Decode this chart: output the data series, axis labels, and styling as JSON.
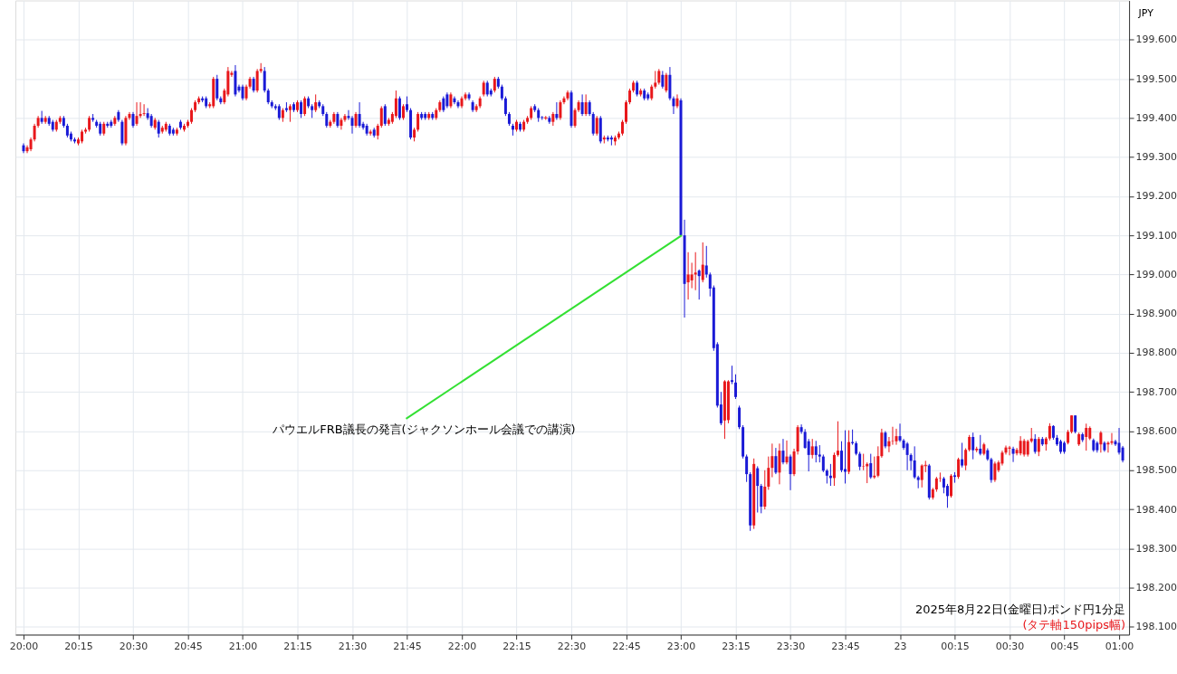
{
  "chart_data": {
    "type": "candlestick",
    "categories": [
      "20:00",
      null,
      null,
      null,
      null,
      null,
      null,
      null,
      null,
      null,
      null,
      null,
      null,
      null,
      null,
      "20:15",
      null,
      null,
      null,
      null,
      null,
      null,
      null,
      null,
      null,
      null,
      null,
      null,
      null,
      null,
      "20:30",
      null,
      null,
      null,
      null,
      null,
      null,
      null,
      null,
      null,
      null,
      null,
      null,
      null,
      null,
      "20:45",
      null,
      null,
      null,
      null,
      null,
      null,
      null,
      null,
      null,
      null,
      null,
      null,
      null,
      null,
      "21:00",
      null,
      null,
      null,
      null,
      null,
      null,
      null,
      null,
      null,
      null,
      null,
      null,
      null,
      null,
      "21:15",
      null,
      null,
      null,
      null,
      null,
      null,
      null,
      null,
      null,
      null,
      null,
      null,
      null,
      null,
      "21:30",
      null,
      null,
      null,
      null,
      null,
      null,
      null,
      null,
      null,
      null,
      null,
      null,
      null,
      null,
      "21:45",
      null,
      null,
      null,
      null,
      null,
      null,
      null,
      null,
      null,
      null,
      null,
      null,
      null,
      null,
      "22:00",
      null,
      null,
      null,
      null,
      null,
      null,
      null,
      null,
      null,
      null,
      null,
      null,
      null,
      null,
      "22:15",
      null,
      null,
      null,
      null,
      null,
      null,
      null,
      null,
      null,
      null,
      null,
      null,
      null,
      null,
      "22:30",
      null,
      null,
      null,
      null,
      null,
      null,
      null,
      null,
      null,
      null,
      null,
      null,
      null,
      null,
      "22:45",
      null,
      null,
      null,
      null,
      null,
      null,
      null,
      null,
      null,
      null,
      null,
      null,
      null,
      null,
      "23:00",
      null,
      null,
      null,
      null,
      null,
      null,
      null,
      null,
      null,
      null,
      null,
      null,
      null,
      null,
      "23:15",
      null,
      null,
      null,
      null,
      null,
      null,
      null,
      null,
      null,
      null,
      null,
      null,
      null,
      null,
      "23:30",
      null,
      null,
      null,
      null,
      null,
      null,
      null,
      null,
      null,
      null,
      null,
      null,
      null,
      null,
      "23:45",
      null,
      null,
      null,
      null,
      null,
      null,
      null,
      null,
      null,
      null,
      null,
      null,
      null,
      null,
      "23",
      null,
      null,
      null,
      null,
      null,
      null,
      null,
      null,
      null,
      null,
      null,
      null,
      null,
      null,
      "00:15",
      null,
      null,
      null,
      null,
      null,
      null,
      null,
      null,
      null,
      null,
      null,
      null,
      null,
      null,
      "00:30",
      null,
      null,
      null,
      null,
      null,
      null,
      null,
      null,
      null,
      null,
      null,
      null,
      null,
      null,
      "00:45",
      null,
      null,
      null,
      null,
      null,
      null,
      null,
      null,
      null,
      null,
      null,
      null,
      null,
      null,
      "01:00",
      null
    ],
    "ohlc": [
      [
        199.33,
        199.335,
        199.31,
        199.315
      ],
      [
        199.315,
        199.33,
        199.31,
        199.325
      ],
      [
        199.32,
        199.35,
        199.315,
        199.345
      ],
      [
        199.345,
        199.385,
        199.34,
        199.38
      ],
      [
        199.38,
        199.405,
        199.375,
        199.4
      ],
      [
        199.4,
        199.418,
        199.385,
        199.39
      ],
      [
        199.39,
        199.405,
        199.385,
        199.4
      ],
      [
        199.4,
        199.405,
        199.38,
        199.385
      ],
      [
        199.39,
        199.395,
        199.365,
        199.37
      ],
      [
        199.37,
        199.395,
        199.365,
        199.39
      ],
      [
        199.39,
        199.405,
        199.385,
        199.4
      ],
      [
        199.4,
        199.405,
        199.375,
        199.38
      ],
      [
        199.38,
        199.385,
        199.35,
        199.355
      ],
      [
        199.36,
        199.365,
        199.34,
        199.345
      ],
      [
        199.345,
        199.35,
        199.335,
        199.34
      ],
      [
        199.335,
        199.35,
        199.33,
        199.345
      ],
      [
        199.34,
        199.37,
        199.335,
        199.365
      ],
      [
        199.365,
        199.375,
        199.36,
        199.37
      ],
      [
        199.37,
        199.405,
        199.365,
        199.4
      ],
      [
        199.4,
        199.41,
        199.39,
        199.395
      ],
      [
        199.39,
        199.395,
        199.375,
        199.38
      ],
      [
        199.385,
        199.39,
        199.355,
        199.36
      ],
      [
        199.36,
        199.39,
        199.355,
        199.385
      ],
      [
        199.385,
        199.39,
        199.375,
        199.38
      ],
      [
        199.39,
        199.395,
        199.375,
        199.38
      ],
      [
        199.385,
        199.405,
        199.38,
        199.4
      ],
      [
        199.415,
        199.42,
        199.39,
        199.395
      ],
      [
        199.39,
        199.395,
        199.33,
        199.335
      ],
      [
        199.335,
        199.405,
        199.33,
        199.4
      ],
      [
        199.4,
        199.415,
        199.395,
        199.41
      ],
      [
        199.41,
        199.415,
        199.375,
        199.38
      ],
      [
        199.385,
        199.44,
        199.38,
        199.405
      ],
      [
        199.405,
        199.44,
        199.4,
        199.41
      ],
      [
        199.41,
        199.435,
        199.405,
        199.412
      ],
      [
        199.412,
        199.425,
        199.395,
        199.4
      ],
      [
        199.405,
        199.41,
        199.375,
        199.38
      ],
      [
        199.375,
        199.4,
        199.37,
        199.395
      ],
      [
        199.39,
        199.395,
        199.35,
        199.36
      ],
      [
        199.365,
        199.38,
        199.36,
        199.375
      ],
      [
        199.37,
        199.39,
        199.365,
        199.385
      ],
      [
        199.38,
        199.385,
        199.355,
        199.36
      ],
      [
        199.37,
        199.375,
        199.355,
        199.36
      ],
      [
        199.36,
        199.375,
        199.355,
        199.37
      ],
      [
        199.39,
        199.395,
        199.37,
        199.375
      ],
      [
        199.37,
        199.385,
        199.365,
        199.38
      ],
      [
        199.38,
        199.395,
        199.375,
        199.39
      ],
      [
        199.39,
        199.425,
        199.385,
        199.42
      ],
      [
        199.42,
        199.445,
        199.415,
        199.44
      ],
      [
        199.44,
        199.455,
        199.435,
        199.45
      ],
      [
        199.45,
        199.455,
        199.44,
        199.445
      ],
      [
        199.45,
        199.455,
        199.425,
        199.43
      ],
      [
        199.43,
        199.44,
        199.425,
        199.435
      ],
      [
        199.43,
        199.505,
        199.425,
        199.5
      ],
      [
        199.5,
        199.51,
        199.445,
        199.45
      ],
      [
        199.45,
        199.455,
        199.435,
        199.44
      ],
      [
        199.44,
        199.475,
        199.435,
        199.47
      ],
      [
        199.46,
        199.53,
        199.455,
        199.52
      ],
      [
        199.51,
        199.52,
        199.505,
        199.515
      ],
      [
        199.52,
        199.535,
        199.455,
        199.46
      ],
      [
        199.48,
        199.485,
        199.465,
        199.47
      ],
      [
        199.48,
        199.485,
        199.445,
        199.45
      ],
      [
        199.45,
        199.485,
        199.445,
        199.48
      ],
      [
        199.48,
        199.505,
        199.475,
        199.5
      ],
      [
        199.5,
        199.505,
        199.465,
        199.47
      ],
      [
        199.47,
        199.525,
        199.465,
        199.52
      ],
      [
        199.52,
        199.54,
        199.515,
        199.525
      ],
      [
        199.52,
        199.53,
        199.465,
        199.47
      ],
      [
        199.47,
        199.475,
        199.435,
        199.44
      ],
      [
        199.44,
        199.445,
        199.425,
        199.43
      ],
      [
        199.43,
        199.435,
        199.42,
        199.425
      ],
      [
        199.43,
        199.435,
        199.395,
        199.4
      ],
      [
        199.4,
        199.425,
        199.39,
        199.42
      ],
      [
        199.425,
        199.44,
        199.415,
        199.42
      ],
      [
        199.42,
        199.435,
        199.39,
        199.43
      ],
      [
        199.435,
        199.44,
        199.415,
        199.42
      ],
      [
        199.42,
        199.445,
        199.415,
        199.44
      ],
      [
        199.44,
        199.445,
        199.4,
        199.41
      ],
      [
        199.41,
        199.455,
        199.405,
        199.45
      ],
      [
        199.45,
        199.455,
        199.425,
        199.43
      ],
      [
        199.43,
        199.435,
        199.4,
        199.42
      ],
      [
        199.42,
        199.46,
        199.415,
        199.44
      ],
      [
        199.44,
        199.445,
        199.425,
        199.43
      ],
      [
        199.43,
        199.435,
        199.405,
        199.41
      ],
      [
        199.41,
        199.415,
        199.375,
        199.38
      ],
      [
        199.38,
        199.395,
        199.375,
        199.39
      ],
      [
        199.39,
        199.415,
        199.385,
        199.41
      ],
      [
        199.41,
        199.415,
        199.375,
        199.38
      ],
      [
        199.38,
        199.4,
        199.37,
        199.395
      ],
      [
        199.395,
        199.41,
        199.39,
        199.405
      ],
      [
        199.405,
        199.42,
        199.395,
        199.4
      ],
      [
        199.4,
        199.405,
        199.36,
        199.38
      ],
      [
        199.38,
        199.415,
        199.375,
        199.41
      ],
      [
        199.41,
        199.44,
        199.375,
        199.38
      ],
      [
        199.385,
        199.39,
        199.37,
        199.375
      ],
      [
        199.38,
        199.385,
        199.355,
        199.36
      ],
      [
        199.36,
        199.37,
        199.355,
        199.365
      ],
      [
        199.37,
        199.375,
        199.35,
        199.355
      ],
      [
        199.355,
        199.385,
        199.345,
        199.38
      ],
      [
        199.38,
        199.43,
        199.375,
        199.425
      ],
      [
        199.43,
        199.435,
        199.38,
        199.385
      ],
      [
        199.385,
        199.4,
        199.38,
        199.395
      ],
      [
        199.39,
        199.415,
        199.385,
        199.41
      ],
      [
        199.405,
        199.47,
        199.4,
        199.45
      ],
      [
        199.45,
        199.455,
        199.395,
        199.4
      ],
      [
        199.4,
        199.435,
        199.395,
        199.43
      ],
      [
        199.435,
        199.455,
        199.415,
        199.42
      ],
      [
        199.42,
        199.425,
        199.345,
        199.35
      ],
      [
        199.35,
        199.375,
        199.34,
        199.37
      ],
      [
        199.37,
        199.415,
        199.365,
        199.41
      ],
      [
        199.41,
        199.415,
        199.395,
        199.4
      ],
      [
        199.41,
        199.415,
        199.395,
        199.4
      ],
      [
        199.4,
        199.415,
        199.395,
        199.41
      ],
      [
        199.41,
        199.415,
        199.395,
        199.4
      ],
      [
        199.4,
        199.425,
        199.395,
        199.42
      ],
      [
        199.42,
        199.445,
        199.415,
        199.44
      ],
      [
        199.45,
        199.455,
        199.415,
        199.42
      ],
      [
        199.46,
        199.465,
        199.425,
        199.43
      ],
      [
        199.43,
        199.465,
        199.425,
        199.46
      ],
      [
        199.45,
        199.455,
        199.435,
        199.44
      ],
      [
        199.44,
        199.445,
        199.425,
        199.43
      ],
      [
        199.43,
        199.455,
        199.425,
        199.45
      ],
      [
        199.45,
        199.465,
        199.445,
        199.46
      ],
      [
        199.46,
        199.465,
        199.445,
        199.45
      ],
      [
        199.44,
        199.445,
        199.415,
        199.42
      ],
      [
        199.42,
        199.435,
        199.415,
        199.43
      ],
      [
        199.43,
        199.455,
        199.425,
        199.45
      ],
      [
        199.46,
        199.495,
        199.455,
        199.49
      ],
      [
        199.49,
        199.495,
        199.455,
        199.46
      ],
      [
        199.47,
        199.475,
        199.455,
        199.46
      ],
      [
        199.47,
        199.505,
        199.465,
        199.5
      ],
      [
        199.5,
        199.505,
        199.475,
        199.48
      ],
      [
        199.48,
        199.485,
        199.445,
        199.45
      ],
      [
        199.45,
        199.455,
        199.405,
        199.41
      ],
      [
        199.41,
        199.415,
        199.38,
        199.385
      ],
      [
        199.38,
        199.385,
        199.355,
        199.37
      ],
      [
        199.37,
        199.395,
        199.365,
        199.39
      ],
      [
        199.385,
        199.39,
        199.365,
        199.37
      ],
      [
        199.37,
        199.395,
        199.365,
        199.39
      ],
      [
        199.39,
        199.405,
        199.385,
        199.4
      ],
      [
        199.4,
        199.43,
        199.395,
        199.425
      ],
      [
        199.43,
        199.435,
        199.415,
        199.42
      ],
      [
        199.42,
        199.425,
        199.39,
        199.4
      ],
      [
        199.402,
        199.405,
        199.395,
        199.4
      ],
      [
        199.4,
        199.405,
        199.395,
        199.4
      ],
      [
        199.4,
        199.405,
        199.385,
        199.39
      ],
      [
        199.39,
        199.415,
        199.38,
        199.41
      ],
      [
        199.41,
        199.44,
        199.395,
        199.4
      ],
      [
        199.4,
        199.445,
        199.395,
        199.44
      ],
      [
        199.44,
        199.455,
        199.435,
        199.45
      ],
      [
        199.45,
        199.47,
        199.445,
        199.465
      ],
      [
        199.465,
        199.47,
        199.375,
        199.38
      ],
      [
        199.38,
        199.425,
        199.375,
        199.42
      ],
      [
        199.42,
        199.445,
        199.415,
        199.44
      ],
      [
        199.44,
        199.46,
        199.405,
        199.41
      ],
      [
        199.41,
        199.46,
        199.405,
        199.44
      ],
      [
        199.44,
        199.445,
        199.405,
        199.41
      ],
      [
        199.41,
        199.415,
        199.355,
        199.36
      ],
      [
        199.36,
        199.405,
        199.355,
        199.4
      ],
      [
        199.4,
        199.405,
        199.335,
        199.34
      ],
      [
        199.345,
        199.355,
        199.335,
        199.35
      ],
      [
        199.35,
        199.355,
        199.34,
        199.345
      ],
      [
        199.35,
        199.355,
        199.33,
        199.345
      ],
      [
        199.34,
        199.355,
        199.33,
        199.35
      ],
      [
        199.35,
        199.365,
        199.345,
        199.36
      ],
      [
        199.36,
        199.395,
        199.355,
        199.39
      ],
      [
        199.39,
        199.445,
        199.385,
        199.44
      ],
      [
        199.44,
        199.475,
        199.435,
        199.47
      ],
      [
        199.47,
        199.495,
        199.465,
        199.49
      ],
      [
        199.49,
        199.495,
        199.455,
        199.46
      ],
      [
        199.46,
        199.475,
        199.455,
        199.47
      ],
      [
        199.47,
        199.475,
        199.445,
        199.45
      ],
      [
        199.46,
        199.465,
        199.445,
        199.45
      ],
      [
        199.45,
        199.485,
        199.445,
        199.48
      ],
      [
        199.48,
        199.52,
        199.475,
        199.49
      ],
      [
        199.49,
        199.525,
        199.485,
        199.52
      ],
      [
        199.51,
        199.52,
        199.475,
        199.48
      ],
      [
        199.47,
        199.515,
        199.465,
        199.51
      ],
      [
        199.51,
        199.53,
        199.445,
        199.45
      ],
      [
        199.45,
        199.455,
        199.41,
        199.43
      ],
      [
        199.43,
        199.46,
        199.425,
        199.45
      ],
      [
        199.445,
        199.45,
        199.1,
        199.1
      ],
      [
        199.1,
        199.14,
        198.89,
        198.976
      ],
      [
        198.98,
        199.057,
        198.936,
        199.0
      ],
      [
        198.985,
        199.03,
        198.965,
        199.0
      ],
      [
        199.0,
        199.057,
        198.96,
        199.005
      ],
      [
        199.01,
        199.013,
        198.936,
        198.996
      ],
      [
        198.986,
        199.082,
        198.98,
        199.025
      ],
      [
        199.023,
        199.073,
        198.992,
        199.0
      ],
      [
        199.0,
        199.005,
        198.944,
        198.964
      ],
      [
        198.967,
        198.972,
        198.805,
        198.812
      ],
      [
        198.822,
        198.827,
        198.66,
        198.665
      ],
      [
        198.668,
        198.7,
        198.615,
        198.62
      ],
      [
        198.627,
        198.73,
        198.58,
        198.727
      ],
      [
        198.628,
        198.73,
        198.62,
        198.727
      ],
      [
        198.73,
        198.767,
        198.72,
        198.726
      ],
      [
        198.724,
        198.745,
        198.682,
        198.687
      ],
      [
        198.66,
        198.665,
        198.605,
        198.61
      ],
      [
        198.61,
        198.615,
        198.53,
        198.535
      ],
      [
        198.535,
        198.54,
        198.47,
        198.49
      ],
      [
        198.49,
        198.495,
        198.345,
        198.359
      ],
      [
        198.359,
        198.53,
        198.35,
        198.516
      ],
      [
        198.505,
        198.51,
        198.392,
        198.46
      ],
      [
        198.46,
        198.465,
        198.39,
        198.407
      ],
      [
        198.407,
        198.5,
        198.4,
        198.458
      ],
      [
        198.458,
        198.535,
        198.45,
        198.506
      ],
      [
        198.506,
        198.568,
        198.482,
        198.536
      ],
      [
        198.536,
        198.557,
        198.49,
        198.494
      ],
      [
        198.494,
        198.568,
        198.464,
        198.55
      ],
      [
        198.55,
        198.58,
        198.515,
        198.52
      ],
      [
        198.52,
        198.576,
        198.515,
        198.535
      ],
      [
        198.535,
        198.54,
        198.449,
        198.49
      ],
      [
        198.49,
        198.555,
        198.485,
        198.548
      ],
      [
        198.548,
        198.615,
        198.54,
        198.61
      ],
      [
        198.61,
        198.617,
        198.593,
        198.598
      ],
      [
        198.598,
        198.605,
        198.555,
        198.557
      ],
      [
        198.574,
        198.58,
        198.497,
        198.539
      ],
      [
        198.539,
        198.58,
        198.53,
        198.561
      ],
      [
        198.561,
        198.575,
        198.52,
        198.539
      ],
      [
        198.54,
        198.564,
        198.52,
        198.535
      ],
      [
        198.535,
        198.54,
        198.495,
        198.499
      ],
      [
        198.499,
        198.503,
        198.466,
        198.486
      ],
      [
        198.486,
        198.516,
        198.46,
        198.48
      ],
      [
        198.48,
        198.545,
        198.46,
        198.539
      ],
      [
        198.539,
        198.625,
        198.535,
        198.55
      ],
      [
        198.55,
        198.574,
        198.495,
        198.5
      ],
      [
        198.503,
        198.602,
        198.466,
        198.496
      ],
      [
        198.496,
        198.602,
        198.49,
        198.572
      ],
      [
        198.572,
        198.604,
        198.565,
        198.569
      ],
      [
        198.569,
        198.574,
        198.538,
        198.542
      ],
      [
        198.542,
        198.547,
        198.5,
        198.509
      ],
      [
        198.51,
        198.542,
        198.5,
        198.511
      ],
      [
        198.51,
        198.52,
        198.467,
        198.516
      ],
      [
        198.518,
        198.542,
        198.478,
        198.482
      ],
      [
        198.482,
        198.535,
        198.478,
        198.486
      ],
      [
        198.486,
        198.561,
        198.482,
        198.536
      ],
      [
        198.536,
        198.606,
        198.532,
        198.596
      ],
      [
        198.596,
        198.6,
        198.556,
        198.561
      ],
      [
        198.561,
        198.585,
        198.546,
        198.574
      ],
      [
        198.574,
        198.611,
        198.565,
        198.575
      ],
      [
        198.574,
        198.606,
        198.565,
        198.587
      ],
      [
        198.587,
        198.619,
        198.572,
        198.576
      ],
      [
        198.576,
        198.58,
        198.552,
        198.557
      ],
      [
        198.568,
        198.572,
        198.5,
        198.539
      ],
      [
        198.539,
        198.543,
        198.5,
        198.524
      ],
      [
        198.525,
        198.561,
        198.478,
        198.482
      ],
      [
        198.482,
        198.486,
        198.454,
        198.475
      ],
      [
        198.475,
        198.515,
        198.456,
        198.512
      ],
      [
        198.512,
        198.524,
        198.495,
        198.512
      ],
      [
        198.512,
        198.516,
        198.425,
        198.43
      ],
      [
        198.43,
        198.455,
        198.425,
        198.451
      ],
      [
        198.451,
        198.483,
        198.445,
        198.479
      ],
      [
        198.479,
        198.494,
        198.47,
        198.48
      ],
      [
        198.479,
        198.483,
        198.441,
        198.456
      ],
      [
        198.46,
        198.465,
        198.404,
        198.434
      ],
      [
        198.434,
        198.49,
        198.43,
        198.486
      ],
      [
        198.487,
        198.495,
        198.468,
        198.483
      ],
      [
        198.483,
        198.532,
        198.478,
        198.528
      ],
      [
        198.528,
        198.57,
        198.507,
        198.512
      ],
      [
        198.512,
        198.556,
        198.5,
        198.552
      ],
      [
        198.552,
        198.59,
        198.548,
        198.585
      ],
      [
        198.585,
        198.596,
        198.528,
        198.551
      ],
      [
        198.551,
        198.56,
        198.546,
        198.555
      ],
      [
        198.555,
        198.59,
        198.538,
        198.542
      ],
      [
        198.542,
        198.57,
        198.538,
        198.566
      ],
      [
        198.551,
        198.556,
        198.524,
        198.528
      ],
      [
        198.528,
        198.532,
        198.468,
        198.475
      ],
      [
        198.475,
        198.522,
        198.47,
        198.517
      ],
      [
        198.5,
        198.525,
        198.495,
        198.52
      ],
      [
        198.517,
        198.55,
        198.512,
        198.545
      ],
      [
        198.545,
        198.563,
        198.54,
        198.558
      ],
      [
        198.555,
        198.562,
        198.538,
        198.558
      ],
      [
        198.555,
        198.56,
        198.521,
        198.542
      ],
      [
        198.543,
        198.557,
        198.538,
        198.552
      ],
      [
        198.543,
        198.587,
        198.538,
        198.575
      ],
      [
        198.54,
        198.58,
        198.535,
        198.575
      ],
      [
        198.54,
        198.578,
        198.535,
        198.574
      ],
      [
        198.574,
        198.608,
        198.57,
        198.581
      ],
      [
        198.58,
        198.592,
        198.542,
        198.547
      ],
      [
        198.547,
        198.585,
        198.536,
        198.58
      ],
      [
        198.58,
        198.585,
        198.562,
        198.566
      ],
      [
        198.566,
        198.585,
        198.55,
        198.581
      ],
      [
        198.581,
        198.62,
        198.576,
        198.613
      ],
      [
        198.613,
        198.615,
        198.578,
        198.583
      ],
      [
        198.583,
        198.59,
        198.562,
        198.566
      ],
      [
        198.574,
        198.578,
        198.542,
        198.547
      ],
      [
        198.57,
        198.574,
        198.542,
        198.547
      ],
      [
        198.57,
        198.603,
        198.566,
        198.598
      ],
      [
        198.598,
        198.64,
        198.594,
        198.64
      ],
      [
        198.64,
        198.64,
        198.594,
        198.598
      ],
      [
        198.566,
        198.596,
        198.562,
        198.592
      ],
      [
        198.592,
        198.596,
        198.572,
        198.577
      ],
      [
        198.585,
        198.619,
        198.55,
        198.608
      ],
      [
        198.581,
        198.612,
        198.577,
        198.608
      ],
      [
        198.577,
        198.581,
        198.547,
        198.551
      ],
      [
        198.57,
        198.574,
        198.545,
        198.551
      ],
      [
        198.566,
        198.6,
        198.545,
        198.596
      ],
      [
        198.57,
        198.574,
        198.547,
        198.551
      ],
      [
        198.566,
        198.574,
        198.545,
        198.57
      ],
      [
        198.57,
        198.595,
        198.565,
        198.574
      ],
      [
        198.574,
        198.578,
        198.562,
        198.566
      ],
      [
        198.57,
        198.608,
        198.54,
        198.545
      ],
      [
        198.558,
        198.562,
        198.52,
        198.525
      ]
    ],
    "colors": [
      "#1a1ad6",
      "#e8171b",
      "#e8171b",
      "#e8171b",
      "#e8171b",
      "#1a1ad6",
      "#e8171b",
      "#1a1ad6",
      "#1a1ad6",
      "#e8171b",
      "#e8171b",
      "#1a1ad6",
      "#1a1ad6",
      "#1a1ad6",
      "#1a1ad6",
      "#e8171b",
      "#e8171b",
      "#e8171b",
      "#e8171b",
      "#1a1ad6",
      "#1a1ad6",
      "#1a1ad6",
      "#e8171b",
      "#1a1ad6",
      "#1a1ad6",
      "#e8171b",
      "#1a1ad6",
      "#1a1ad6",
      "#e8171b",
      "#e8171b",
      "#1a1ad6",
      "#e8171b",
      "#e8171b",
      "#e8171b",
      "#1a1ad6",
      "#1a1ad6",
      "#e8171b",
      "#1a1ad6",
      "#e8171b",
      "#e8171b",
      "#1a1ad6",
      "#1a1ad6",
      "#e8171b",
      "#1a1ad6",
      "#e8171b",
      "#e8171b",
      "#e8171b",
      "#e8171b",
      "#e8171b",
      "#1a1ad6",
      "#1a1ad6",
      "#e8171b",
      "#e8171b",
      "#1a1ad6",
      "#1a1ad6",
      "#e8171b",
      "#e8171b",
      "#e8171b",
      "#1a1ad6",
      "#1a1ad6",
      "#1a1ad6",
      "#e8171b",
      "#e8171b",
      "#1a1ad6",
      "#e8171b",
      "#e8171b",
      "#1a1ad6",
      "#1a1ad6",
      "#1a1ad6",
      "#1a1ad6",
      "#1a1ad6",
      "#e8171b",
      "#1a1ad6",
      "#e8171b",
      "#1a1ad6",
      "#e8171b",
      "#1a1ad6",
      "#e8171b",
      "#1a1ad6",
      "#1a1ad6",
      "#e8171b",
      "#1a1ad6",
      "#1a1ad6",
      "#1a1ad6",
      "#e8171b",
      "#e8171b",
      "#1a1ad6",
      "#e8171b",
      "#e8171b",
      "#1a1ad6",
      "#1a1ad6",
      "#e8171b",
      "#1a1ad6",
      "#1a1ad6",
      "#1a1ad6",
      "#e8171b",
      "#1a1ad6",
      "#e8171b",
      "#e8171b",
      "#1a1ad6",
      "#e8171b",
      "#e8171b",
      "#e8171b",
      "#1a1ad6",
      "#e8171b",
      "#1a1ad6",
      "#1a1ad6",
      "#e8171b",
      "#e8171b",
      "#1a1ad6",
      "#1a1ad6",
      "#e8171b",
      "#1a1ad6",
      "#e8171b",
      "#e8171b",
      "#1a1ad6",
      "#1a1ad6",
      "#e8171b",
      "#1a1ad6",
      "#1a1ad6",
      "#e8171b",
      "#e8171b",
      "#1a1ad6",
      "#1a1ad6",
      "#e8171b",
      "#e8171b",
      "#e8171b",
      "#1a1ad6",
      "#1a1ad6",
      "#e8171b",
      "#1a1ad6",
      "#1a1ad6",
      "#1a1ad6",
      "#1a1ad6",
      "#1a1ad6",
      "#e8171b",
      "#1a1ad6",
      "#e8171b",
      "#e8171b",
      "#e8171b",
      "#1a1ad6",
      "#1a1ad6",
      "#1a1ad6",
      "#e8171b",
      "#1a1ad6",
      "#e8171b",
      "#1a1ad6",
      "#e8171b",
      "#e8171b",
      "#e8171b",
      "#1a1ad6",
      "#e8171b",
      "#e8171b",
      "#1a1ad6",
      "#e8171b",
      "#1a1ad6",
      "#1a1ad6",
      "#e8171b",
      "#1a1ad6",
      "#e8171b",
      "#1a1ad6",
      "#1a1ad6",
      "#e8171b",
      "#e8171b",
      "#e8171b",
      "#e8171b",
      "#e8171b",
      "#e8171b",
      "#1a1ad6",
      "#e8171b",
      "#1a1ad6",
      "#1a1ad6",
      "#e8171b",
      "#e8171b",
      "#e8171b",
      "#1a1ad6",
      "#e8171b",
      "#1a1ad6",
      "#1a1ad6",
      "#e8171b",
      "#1a1ad6",
      "#1a1ad6",
      "#e8171b",
      "#e8171b",
      "#e8171b",
      "#1a1ad6",
      "#e8171b",
      "#1a1ad6",
      "#1a1ad6",
      "#1a1ad6",
      "#1a1ad6",
      "#1a1ad6",
      "#e8171b",
      "#e8171b",
      "#1a1ad6",
      "#1a1ad6",
      "#1a1ad6",
      "#1a1ad6",
      "#1a1ad6",
      "#1a1ad6",
      "#e8171b",
      "#1a1ad6",
      "#1a1ad6",
      "#e8171b",
      "#e8171b",
      "#e8171b",
      "#1a1ad6",
      "#e8171b",
      "#1a1ad6",
      "#e8171b",
      "#1a1ad6",
      "#e8171b",
      "#e8171b",
      "#1a1ad6",
      "#1a1ad6",
      "#1a1ad6",
      "#e8171b",
      "#1a1ad6",
      "#1a1ad6",
      "#1a1ad6",
      "#1a1ad6",
      "#1a1ad6",
      "#e8171b",
      "#e8171b",
      "#1a1ad6",
      "#1a1ad6",
      "#e8171b",
      "#1a1ad6",
      "#1a1ad6",
      "#1a1ad6",
      "#e8171b",
      "#e8171b",
      "#1a1ad6",
      "#e8171b",
      "#e8171b",
      "#e8171b",
      "#1a1ad6",
      "#e8171b",
      "#e8171b",
      "#e8171b",
      "#1a1ad6",
      "#1a1ad6",
      "#1a1ad6",
      "#1a1ad6",
      "#1a1ad6",
      "#1a1ad6",
      "#e8171b",
      "#e8171b",
      "#1a1ad6",
      "#e8171b",
      "#e8171b",
      "#e8171b",
      "#1a1ad6",
      "#1a1ad6",
      "#e8171b",
      "#1a1ad6",
      "#e8171b",
      "#1a1ad6",
      "#e8171b",
      "#e8171b",
      "#1a1ad6",
      "#e8171b",
      "#1a1ad6",
      "#e8171b",
      "#1a1ad6",
      "#1a1ad6",
      "#e8171b",
      "#e8171b",
      "#e8171b",
      "#e8171b",
      "#e8171b",
      "#1a1ad6",
      "#e8171b",
      "#e8171b",
      "#e8171b",
      "#e8171b",
      "#e8171b",
      "#1a1ad6",
      "#e8171b",
      "#1a1ad6",
      "#e8171b",
      "#e8171b",
      "#1a1ad6",
      "#1a1ad6",
      "#1a1ad6",
      "#1a1ad6",
      "#e8171b",
      "#e8171b",
      "#1a1ad6",
      "#e8171b",
      "#1a1ad6",
      "#e8171b",
      "#e8171b",
      "#1a1ad6",
      "#1a1ad6",
      "#e8171b",
      "#1a1ad6",
      "#e8171b",
      "#e8171b",
      "#1a1ad6",
      "#1a1ad6",
      "#1a1ad6"
    ],
    "ylabel": "JPY",
    "ylim": [
      198.08,
      199.7
    ],
    "yticks": [
      {
        "value": 198.1,
        "label": "198.100"
      },
      {
        "value": 198.2,
        "label": "198.200"
      },
      {
        "value": 198.3,
        "label": "198.300"
      },
      {
        "value": 198.4,
        "label": "198.400"
      },
      {
        "value": 198.5,
        "label": "198.500"
      },
      {
        "value": 198.6,
        "label": "198.600"
      },
      {
        "value": 198.7,
        "label": "198.700"
      },
      {
        "value": 198.8,
        "label": "198.800"
      },
      {
        "value": 198.9,
        "label": "198.900"
      },
      {
        "value": 199.0,
        "label": "199.000"
      },
      {
        "value": 199.1,
        "label": "199.100"
      },
      {
        "value": 199.2,
        "label": "199.200"
      },
      {
        "value": 199.3,
        "label": "199.300"
      },
      {
        "value": 199.4,
        "label": "199.400"
      },
      {
        "value": 199.5,
        "label": "199.500"
      },
      {
        "value": 199.6,
        "label": "199.600"
      }
    ],
    "annotations": [
      {
        "text": "パウエルFRB議長の発言(ジャクソンホール会議での講演)",
        "x": "23:00",
        "y": 199.1
      },
      "2025年8月22日(金曜日)ポンド円1分足",
      "(タテ軸150pips幅)"
    ],
    "grid": true
  }
}
